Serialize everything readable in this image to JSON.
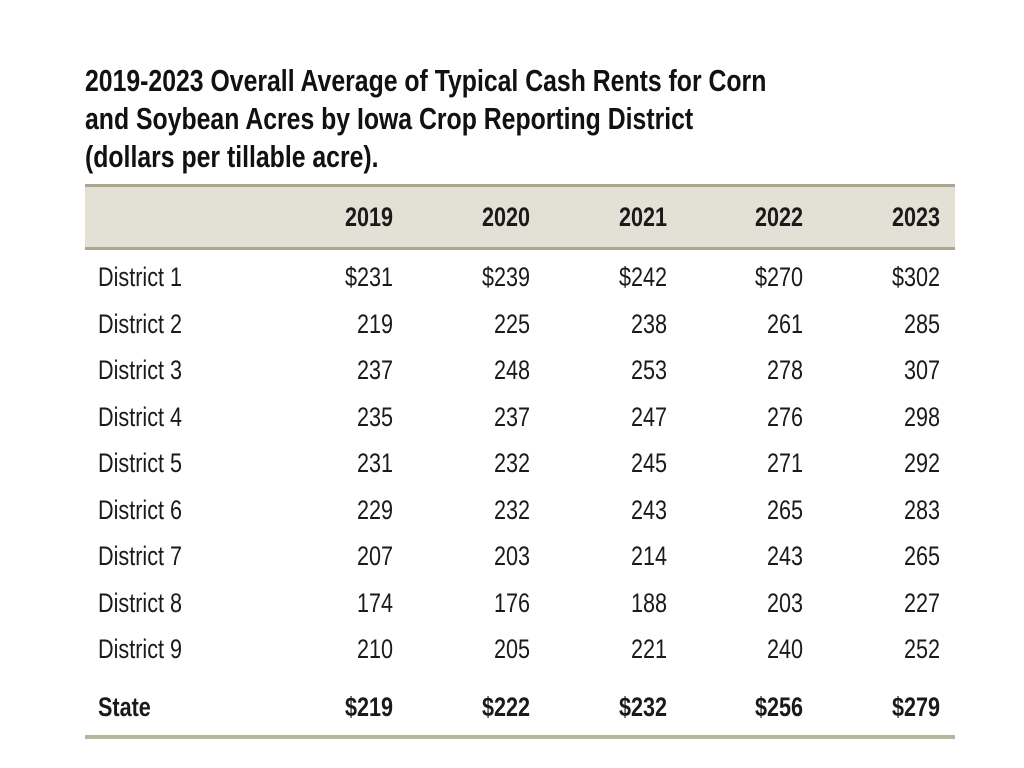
{
  "title_lines": [
    "2019-2023 Overall Average of Typical Cash Rents for Corn",
    "and Soybean Acres by Iowa Crop Reporting District",
    "(dollars per tillable acre)."
  ],
  "columns": [
    "2019",
    "2020",
    "2021",
    "2022",
    "2023"
  ],
  "rows": [
    {
      "label": "District 1",
      "values": [
        "$231",
        "$239",
        "$242",
        "$270",
        "$302"
      ]
    },
    {
      "label": "District 2",
      "values": [
        "219",
        "225",
        "238",
        "261",
        "285"
      ]
    },
    {
      "label": "District 3",
      "values": [
        "237",
        "248",
        "253",
        "278",
        "307"
      ]
    },
    {
      "label": "District 4",
      "values": [
        "235",
        "237",
        "247",
        "276",
        "298"
      ]
    },
    {
      "label": "District 5",
      "values": [
        "231",
        "232",
        "245",
        "271",
        "292"
      ]
    },
    {
      "label": "District 6",
      "values": [
        "229",
        "232",
        "243",
        "265",
        "283"
      ]
    },
    {
      "label": "District 7",
      "values": [
        "207",
        "203",
        "214",
        "243",
        "265"
      ]
    },
    {
      "label": "District 8",
      "values": [
        "174",
        "176",
        "188",
        "203",
        "227"
      ]
    },
    {
      "label": "District 9",
      "values": [
        "210",
        "205",
        "221",
        "240",
        "252"
      ]
    }
  ],
  "state": {
    "label": "State",
    "values": [
      "$219",
      "$222",
      "$232",
      "$256",
      "$279"
    ]
  },
  "colors": {
    "header_band": "#e3e1d5",
    "rule": "#a9a88c",
    "bottom_rule": "#b2b898"
  }
}
